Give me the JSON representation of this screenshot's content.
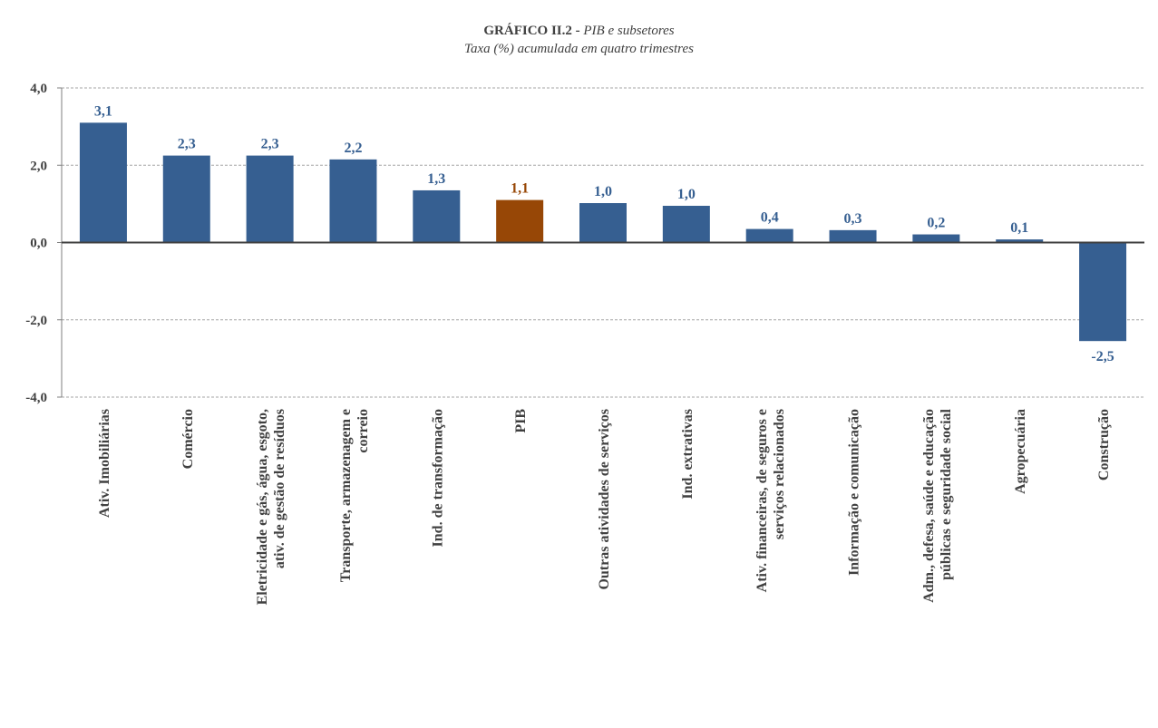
{
  "chart_data": {
    "type": "bar",
    "title": "GRÁFICO II.2 -",
    "title_italic": "PIB e subsetores",
    "subtitle": "Taxa (%) acumulada em quatro trimestres",
    "xlabel": "",
    "ylabel": "",
    "ylim": [
      -4,
      4
    ],
    "y_ticks": [
      "4,0",
      "2,0",
      "0,0",
      "-2,0",
      "-4,0"
    ],
    "grid": true,
    "categories": [
      [
        "Ativ. Imobiliárias"
      ],
      [
        "Comércio"
      ],
      [
        "Eletricidade e gás, água, esgoto,",
        "ativ. de gestão de resíduos"
      ],
      [
        "Transporte, armazenagem e",
        "correio"
      ],
      [
        "Ind. de transformação"
      ],
      [
        "PIB"
      ],
      [
        "Outras atividades de serviços"
      ],
      [
        "Ind. extrativas"
      ],
      [
        "Ativ. financeiras, de seguros e",
        "serviços relacionados"
      ],
      [
        "Informação e comunicação"
      ],
      [
        "Adm., defesa, saúde e educação",
        "públicas e seguridade social"
      ],
      [
        "Agropecuária"
      ],
      [
        "Construção"
      ]
    ],
    "values": [
      3.1,
      2.25,
      2.25,
      2.15,
      1.35,
      1.1,
      1.02,
      0.95,
      0.35,
      0.32,
      0.21,
      0.08,
      -2.55
    ],
    "value_labels": [
      "3,1",
      "2,3",
      "2,3",
      "2,2",
      "1,3",
      "1,1",
      "1,0",
      "1,0",
      "0,4",
      "0,3",
      "0,2",
      "0,1",
      "-2,5"
    ],
    "highlight_index": 5,
    "colors": {
      "bar": "#365f91",
      "highlight": "#974706",
      "label": "#365f91",
      "highlight_label": "#974706",
      "axis_text": "#404040",
      "grid": "#a6a6a6"
    }
  }
}
